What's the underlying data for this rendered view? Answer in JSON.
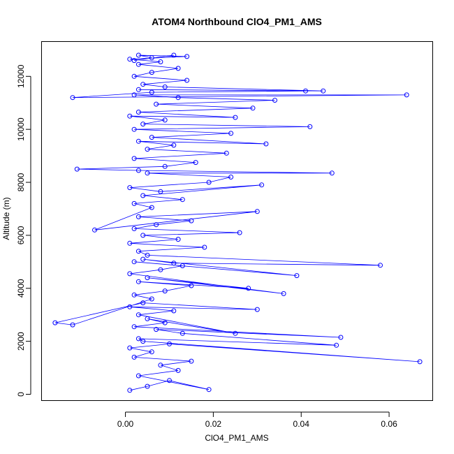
{
  "chart_data": {
    "type": "scatter",
    "title": "ATOM4 Northbound ClO4_PM1_AMS",
    "xlabel": "ClO4_PM1_AMS",
    "ylabel": "Altitude (m)",
    "xlim": [
      -0.019,
      0.07
    ],
    "ylim": [
      -250,
      13300
    ],
    "x_ticks": [
      "0.00",
      "0.02",
      "0.04",
      "0.06"
    ],
    "x_tick_values": [
      0,
      0.02,
      0.04,
      0.06
    ],
    "y_ticks": [
      "0",
      "2000",
      "4000",
      "6000",
      "8000",
      "10000",
      "12000"
    ],
    "y_tick_values": [
      0,
      2000,
      4000,
      6000,
      8000,
      10000,
      12000
    ],
    "grid": false,
    "color": "#0000ff",
    "marker": "open-circle",
    "connected": true,
    "series": [
      {
        "x": [
          0.001,
          0.005,
          0.01,
          0.019,
          0.003,
          0.012,
          0.008,
          0.015,
          0.002,
          0.006,
          0.001,
          0.01,
          0.067,
          0.004,
          0.003,
          0.048,
          0.013,
          0.007,
          0.049,
          0.002,
          0.009,
          0.005,
          0.025,
          0.003,
          0.011,
          0.001,
          0.03,
          0.004,
          -0.016,
          -0.012,
          0.006,
          0.002,
          0.009,
          0.015,
          0.003,
          0.028,
          0.005,
          0.036,
          0.001,
          0.008,
          0.013,
          0.002,
          0.039,
          0.004,
          0.011,
          0.058,
          0.005,
          0.003,
          0.018,
          0.001,
          0.012,
          0.004,
          0.026,
          0.002,
          0.007,
          0.015,
          0.003,
          0.03,
          -0.007,
          0.006,
          0.002,
          0.013,
          0.004,
          0.031,
          0.008,
          0.001,
          0.019,
          0.024,
          0.005,
          0.047,
          0.003,
          -0.011,
          0.009,
          0.016,
          0.002,
          0.023,
          0.005,
          0.011,
          0.003,
          0.032,
          0.006,
          0.024,
          0.002,
          0.042,
          0.004,
          0.009,
          0.001,
          0.025,
          0.003,
          0.029,
          0.007,
          0.034,
          0.012,
          0.002,
          0.064,
          -0.012,
          0.006,
          0.041,
          0.003,
          0.045,
          0.009,
          0.004,
          0.014,
          0.002,
          0.006,
          0.012,
          0.003,
          0.008,
          0.001,
          0.014,
          0.003,
          0.006,
          0.002,
          0.011
        ],
        "y": [
          150,
          300,
          520,
          180,
          700,
          900,
          1100,
          1250,
          1400,
          1600,
          1750,
          1900,
          1230,
          2000,
          2100,
          1850,
          2300,
          2450,
          2150,
          2550,
          2700,
          2850,
          2300,
          3000,
          3150,
          3300,
          3200,
          3450,
          2700,
          2620,
          3600,
          3750,
          3900,
          4100,
          4250,
          4000,
          4400,
          3800,
          4550,
          4700,
          4850,
          5000,
          4480,
          5100,
          4950,
          4870,
          5250,
          5400,
          5550,
          5700,
          5850,
          6000,
          6100,
          6250,
          6400,
          6550,
          6700,
          6900,
          6200,
          7050,
          7200,
          7350,
          7500,
          7900,
          7650,
          7800,
          8000,
          8200,
          8350,
          8350,
          8450,
          8500,
          8600,
          8750,
          8900,
          9100,
          9250,
          9400,
          9550,
          9450,
          9700,
          9850,
          10000,
          10100,
          10200,
          10350,
          10500,
          10450,
          10650,
          10800,
          10950,
          11100,
          11200,
          11300,
          11300,
          11200,
          11400,
          11450,
          11500,
          11450,
          11600,
          11700,
          11850,
          12000,
          12150,
          12300,
          12450,
          12550,
          12650,
          12750,
          12800,
          12700,
          12600,
          12800
        ]
      }
    ]
  }
}
